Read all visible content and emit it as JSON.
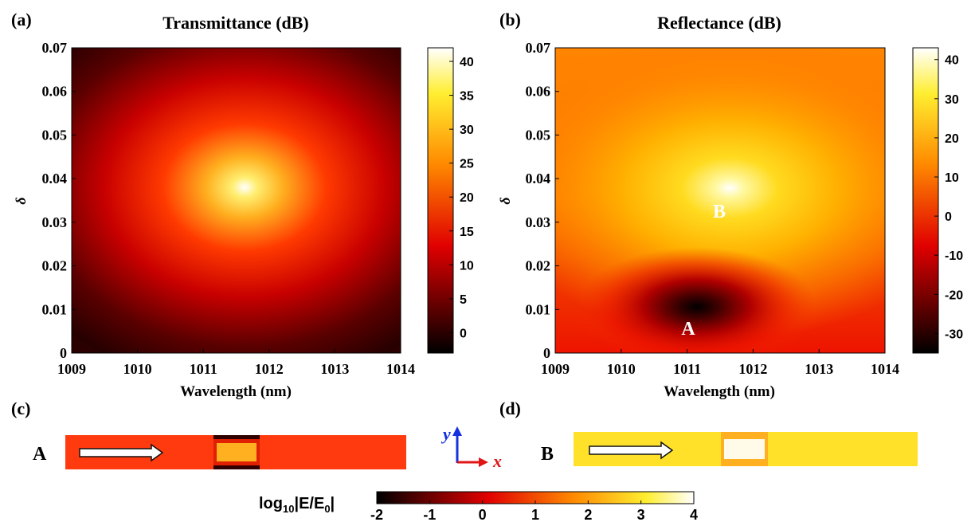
{
  "chart_data": [
    {
      "type": "heatmap",
      "panel": "(a)",
      "title": "Transmittance (dB)",
      "xlabel": "Wavelength (nm)",
      "ylabel": "δ",
      "xlim": [
        1009,
        1014
      ],
      "ylim": [
        0,
        0.07
      ],
      "x_ticks": [
        "1009",
        "1010",
        "1011",
        "1012",
        "1013",
        "1014"
      ],
      "y_ticks": [
        "0",
        "0.01",
        "0.02",
        "0.03",
        "0.04",
        "0.05",
        "0.06",
        "0.07"
      ],
      "colorbar": {
        "min": -3,
        "max": 42,
        "ticks": [
          "0",
          "5",
          "10",
          "15",
          "20",
          "25",
          "30",
          "35",
          "40"
        ],
        "colormap": "hot"
      },
      "peak": {
        "x": 1011.65,
        "y": 0.038,
        "value": 40
      },
      "background_value": -2
    },
    {
      "type": "heatmap",
      "panel": "(b)",
      "title": "Reflectance (dB)",
      "xlabel": "Wavelength (nm)",
      "ylabel": "δ",
      "xlim": [
        1009,
        1014
      ],
      "ylim": [
        0,
        0.07
      ],
      "x_ticks": [
        "1009",
        "1010",
        "1011",
        "1012",
        "1013",
        "1014"
      ],
      "y_ticks": [
        "0",
        "0.01",
        "0.02",
        "0.03",
        "0.04",
        "0.05",
        "0.06",
        "0.07"
      ],
      "colorbar": {
        "min": -35,
        "max": 43,
        "ticks": [
          "-30",
          "-20",
          "-10",
          "0",
          "10",
          "20",
          "30",
          "40"
        ],
        "colormap": "hot"
      },
      "peak": {
        "x": 1011.65,
        "y": 0.038,
        "value": 40
      },
      "dip": {
        "x": 1011.15,
        "y": 0.0105,
        "value": -33
      },
      "annotations": [
        {
          "text": "B",
          "x": 1011.65,
          "y": 0.033
        },
        {
          "text": "A",
          "x": 1011.05,
          "y": 0.0055
        }
      ]
    }
  ],
  "panel_c": {
    "label": "(c)",
    "point": "A",
    "field_color": "#ff3a0e",
    "center_color": "#ffb020"
  },
  "panel_d": {
    "label": "(d)",
    "point": "B",
    "field_color": "#ffe12a",
    "center_color": "#fffbe8"
  },
  "axes_glyph": {
    "y": "y",
    "x": "x",
    "y_color": "#1530e0",
    "x_color": "#e01515"
  },
  "field_colorbar": {
    "label_main": "log",
    "label_sub": "10",
    "label_rest": "|E/E",
    "label_sub2": "0",
    "label_end": "|",
    "min": -2,
    "max": 4,
    "ticks": [
      "-2",
      "-1",
      "0",
      "1",
      "2",
      "3",
      "4"
    ],
    "colormap": "hot"
  }
}
